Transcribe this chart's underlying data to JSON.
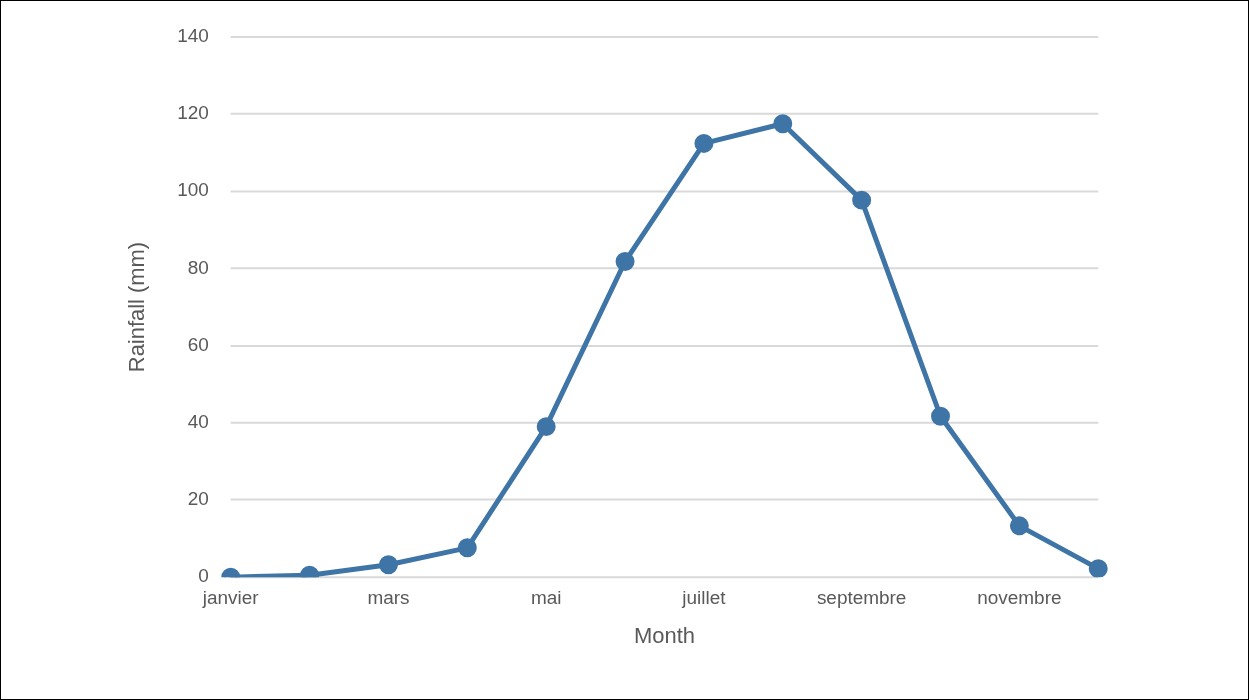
{
  "chart_data": {
    "type": "line",
    "xlabel": "Month",
    "ylabel": "Rainfall (mm)",
    "categories": [
      "janvier",
      null,
      "mars",
      null,
      "mai",
      null,
      "juillet",
      null,
      "septembre",
      null,
      "novembre",
      null
    ],
    "series": [
      {
        "color": "#3e75a6",
        "values": [
          0,
          0.5,
          3.2,
          7.6,
          39,
          81.8,
          112.4,
          117.5,
          97.7,
          41.7,
          13.3,
          2.2
        ]
      }
    ],
    "ylim": [
      0,
      140
    ],
    "yticks": [
      0,
      20,
      40,
      60,
      80,
      100,
      120,
      140
    ],
    "grid": "y",
    "legend": false,
    "marker": "circle",
    "line_style": "solid"
  }
}
